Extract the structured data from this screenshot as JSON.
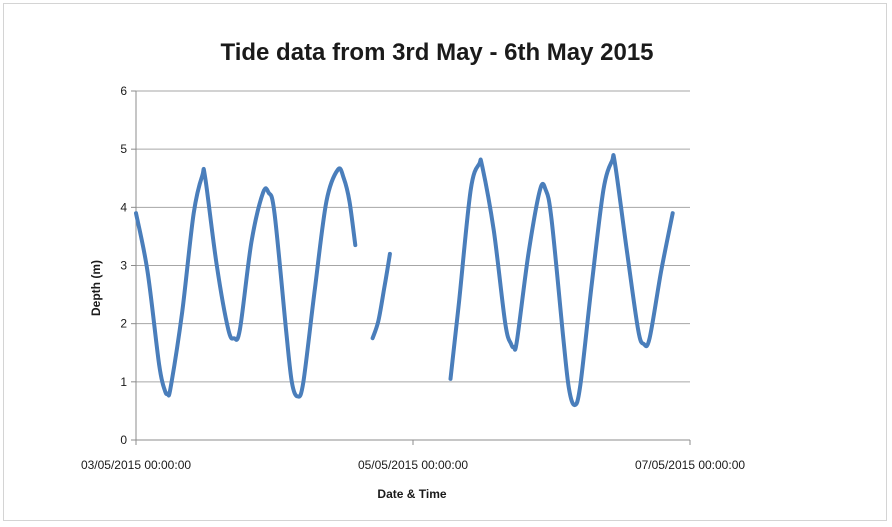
{
  "chart_data": {
    "type": "line",
    "title": "Tide data from 3rd May - 6th May 2015",
    "xlabel": "Date & Time",
    "ylabel": "Depth (m)",
    "ylim": [
      0,
      6
    ],
    "xlim": [
      "03/05/2015 00:00",
      "07/05/2015 00:00"
    ],
    "yticks": [
      "0",
      "1",
      "2",
      "3",
      "4",
      "5",
      "6"
    ],
    "xticks": [
      {
        "value": "03/05/2015 00:00",
        "label": "03/05/2015 00:00:00"
      },
      {
        "value": "05/05/2015 00:00",
        "label": "05/05/2015 00:00:00"
      },
      {
        "value": "07/05/2015 00:00",
        "label": "07/05/2015 00:00:00"
      }
    ],
    "grid": true,
    "legend": "none",
    "color": "#4a7ebb",
    "series": [
      {
        "segments": [
          [
            [
              "03/05/2015 00:00",
              3.9
            ],
            [
              "03/05/2015 02:00",
              2.9
            ],
            [
              "03/05/2015 04:00",
              1.3
            ],
            [
              "03/05/2015 05:00",
              0.85
            ],
            [
              "03/05/2015 05:30",
              0.8
            ],
            [
              "03/05/2015 06:00",
              0.9
            ],
            [
              "03/05/2015 08:00",
              2.2
            ],
            [
              "03/05/2015 10:00",
              3.9
            ],
            [
              "03/05/2015 11:30",
              4.55
            ],
            [
              "03/05/2015 12:00",
              4.5
            ],
            [
              "03/05/2015 14:00",
              3.0
            ],
            [
              "03/05/2015 16:00",
              1.9
            ],
            [
              "03/05/2015 17:00",
              1.75
            ],
            [
              "03/05/2015 18:00",
              1.9
            ],
            [
              "03/05/2015 20:00",
              3.4
            ],
            [
              "03/05/2015 22:00",
              4.25
            ],
            [
              "03/05/2015 23:00",
              4.25
            ],
            [
              "04/05/2015 00:00",
              3.9
            ],
            [
              "04/05/2015 02:00",
              1.9
            ],
            [
              "04/05/2015 03:00",
              1.0
            ],
            [
              "04/05/2015 04:00",
              0.75
            ],
            [
              "04/05/2015 05:00",
              1.0
            ],
            [
              "04/05/2015 07:00",
              2.6
            ],
            [
              "04/05/2015 09:00",
              4.1
            ],
            [
              "04/05/2015 11:00",
              4.65
            ],
            [
              "04/05/2015 12:00",
              4.5
            ],
            [
              "04/05/2015 13:00",
              4.1
            ],
            [
              "04/05/2015 14:00",
              3.35
            ]
          ],
          [
            [
              "04/05/2015 17:00",
              1.75
            ],
            [
              "04/05/2015 18:00",
              2.05
            ],
            [
              "04/05/2015 19:00",
              2.6
            ],
            [
              "04/05/2015 20:00",
              3.2
            ]
          ],
          [
            [
              "05/05/2015 06:30",
              1.05
            ],
            [
              "05/05/2015 08:00",
              2.4
            ],
            [
              "05/05/2015 10:00",
              4.3
            ],
            [
              "05/05/2015 11:30",
              4.75
            ],
            [
              "05/05/2015 12:00",
              4.7
            ],
            [
              "05/05/2015 14:00",
              3.6
            ],
            [
              "05/05/2015 16:00",
              2.0
            ],
            [
              "05/05/2015 17:00",
              1.65
            ],
            [
              "05/05/2015 17:30",
              1.6
            ],
            [
              "05/05/2015 18:00",
              1.7
            ],
            [
              "05/05/2015 20:00",
              3.2
            ],
            [
              "05/05/2015 22:00",
              4.3
            ],
            [
              "05/05/2015 23:00",
              4.3
            ],
            [
              "06/05/2015 00:00",
              3.8
            ],
            [
              "06/05/2015 02:00",
              1.8
            ],
            [
              "06/05/2015 03:00",
              0.9
            ],
            [
              "06/05/2015 04:00",
              0.6
            ],
            [
              "06/05/2015 05:00",
              0.95
            ],
            [
              "06/05/2015 07:00",
              2.7
            ],
            [
              "06/05/2015 09:00",
              4.3
            ],
            [
              "06/05/2015 10:30",
              4.8
            ],
            [
              "06/05/2015 11:00",
              4.75
            ],
            [
              "06/05/2015 13:00",
              3.3
            ],
            [
              "06/05/2015 15:00",
              1.9
            ],
            [
              "06/05/2015 16:00",
              1.65
            ],
            [
              "06/05/2015 17:00",
              1.75
            ],
            [
              "06/05/2015 19:00",
              2.9
            ],
            [
              "06/05/2015 21:00",
              3.9
            ]
          ]
        ]
      }
    ]
  }
}
